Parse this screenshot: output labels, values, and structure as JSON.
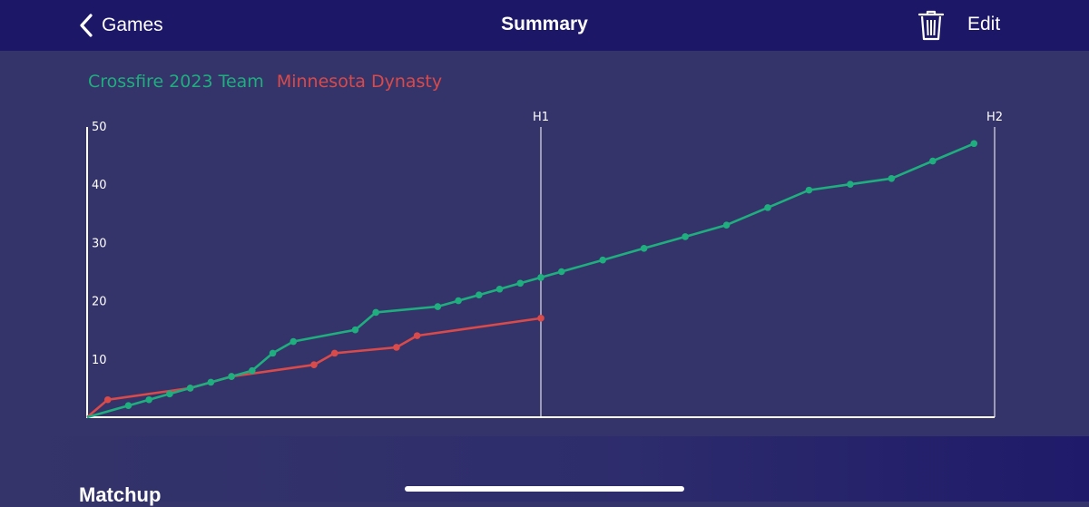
{
  "nav": {
    "back_label": "Games",
    "title": "Summary",
    "edit_label": "Edit",
    "trash_icon": "trash-icon",
    "back_icon": "chevron-left-icon"
  },
  "colors": {
    "navbar": "#1d1768",
    "background": "#34346a",
    "team_a": "#1fae7e",
    "team_b": "#d94a4a",
    "axis": "#ffffff"
  },
  "chart_data": {
    "type": "line",
    "legend": [
      "Crossfire 2023 Team",
      "Minnesota Dynasty"
    ],
    "legend_position": "top-left",
    "x_markers": [
      "H1",
      "H2"
    ],
    "ylim": [
      0,
      50
    ],
    "yticks": [
      10,
      20,
      30,
      40,
      50
    ],
    "grid": false,
    "series": [
      {
        "name": "Crossfire 2023 Team",
        "color": "#1fae7e",
        "points": [
          [
            0,
            0
          ],
          [
            2,
            2
          ],
          [
            3,
            3
          ],
          [
            4,
            4
          ],
          [
            5,
            5
          ],
          [
            6,
            6
          ],
          [
            7,
            7
          ],
          [
            8,
            8
          ],
          [
            9,
            11
          ],
          [
            10,
            13
          ],
          [
            13,
            15
          ],
          [
            14,
            18
          ],
          [
            17,
            19
          ],
          [
            18,
            20
          ],
          [
            19,
            21
          ],
          [
            20,
            22
          ],
          [
            21,
            23
          ],
          [
            22,
            24
          ],
          [
            23,
            25
          ],
          [
            25,
            27
          ],
          [
            27,
            29
          ],
          [
            29,
            31
          ],
          [
            31,
            33
          ],
          [
            33,
            36
          ],
          [
            35,
            39
          ],
          [
            37,
            40
          ],
          [
            39,
            41
          ],
          [
            41,
            44
          ],
          [
            43,
            47
          ]
        ]
      },
      {
        "name": "Minnesota Dynasty",
        "color": "#d94a4a",
        "points": [
          [
            0,
            0
          ],
          [
            1,
            3
          ],
          [
            5,
            5
          ],
          [
            7,
            7
          ],
          [
            11,
            9
          ],
          [
            12,
            11
          ],
          [
            15,
            12
          ],
          [
            16,
            14
          ],
          [
            22,
            17
          ]
        ]
      }
    ]
  },
  "section": {
    "matchup_label": "Matchup"
  }
}
